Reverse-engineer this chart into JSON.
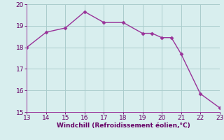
{
  "x": [
    13,
    14,
    15,
    16,
    17,
    18,
    19,
    19.5,
    20,
    20.5,
    21,
    22,
    23
  ],
  "y": [
    18.0,
    18.7,
    18.9,
    19.65,
    19.15,
    19.15,
    18.65,
    18.65,
    18.45,
    18.45,
    17.7,
    15.85,
    15.2
  ],
  "line_color": "#993399",
  "marker": "D",
  "marker_size": 2.5,
  "bg_color": "#d8eeee",
  "grid_color": "#aacccc",
  "xlabel": "Windchill (Refroidissement éolien,°C)",
  "xlim": [
    13,
    23
  ],
  "ylim": [
    15,
    20
  ],
  "xticks": [
    13,
    14,
    15,
    16,
    17,
    18,
    19,
    20,
    21,
    22,
    23
  ],
  "yticks": [
    15,
    16,
    17,
    18,
    19,
    20
  ],
  "xlabel_color": "#660066",
  "tick_color": "#660066",
  "spine_color": "#993399",
  "linewidth": 1.0
}
